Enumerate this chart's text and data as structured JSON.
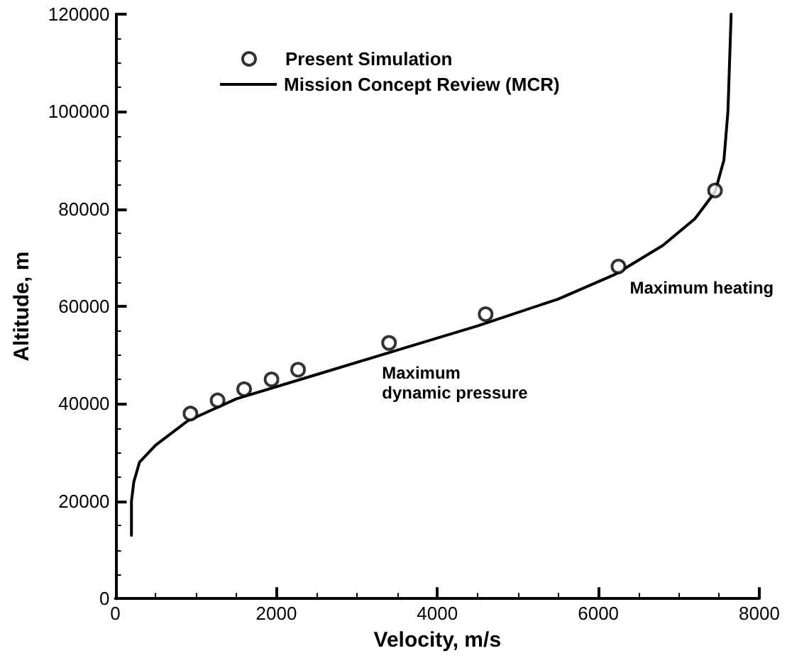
{
  "chart_data": {
    "type": "scatter",
    "xlabel": "Velocity, m/s",
    "ylabel": "Altitude, m",
    "xlim": [
      0,
      8000
    ],
    "xticks": [
      0,
      2000,
      4000,
      6000,
      8000
    ],
    "ylim": [
      0,
      120000
    ],
    "yticks": [
      0,
      20000,
      40000,
      60000,
      80000,
      100000,
      120000
    ],
    "grid": false,
    "legend": "top",
    "series": [
      {
        "name": "Present Simulation",
        "type": "scatter",
        "marker": "circle",
        "color": "#000000",
        "x": [
          933,
          1270,
          1600,
          1940,
          2270,
          3400,
          4600,
          6250,
          7450
        ],
        "values": [
          38000,
          40700,
          43000,
          45000,
          47000,
          52500,
          58400,
          68200,
          83800
        ]
      },
      {
        "name": "Mission Concept Review (MCR)",
        "type": "line",
        "marker": "none",
        "line_style": "solid",
        "color": "#000000",
        "x": [
          200,
          200,
          230,
          300,
          500,
          900,
          1500,
          2500,
          3500,
          4500,
          5500,
          6200,
          6800,
          7200,
          7450,
          7560,
          7610,
          7630,
          7650
        ],
        "values": [
          13000,
          20000,
          24000,
          28000,
          31500,
          36500,
          41000,
          46000,
          51000,
          56000,
          61500,
          66500,
          72500,
          78000,
          83500,
          90000,
          100000,
          110000,
          120000
        ]
      }
    ],
    "annotations": [
      {
        "text": "Maximum\ndynamic pressure",
        "x": 3400,
        "y": 52500
      },
      {
        "text": "Maximum heating",
        "x": 6250,
        "y": 68200
      }
    ]
  }
}
